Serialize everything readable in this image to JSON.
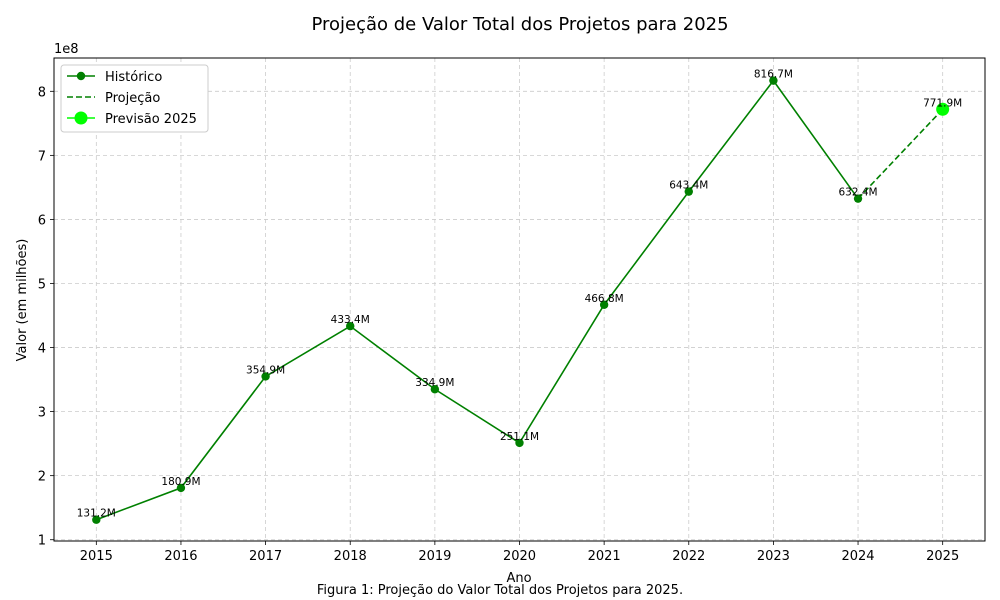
{
  "chart_data": {
    "type": "line",
    "title": "Projeção de Valor Total dos Projetos para 2025",
    "xlabel": "Ano",
    "ylabel": "Valor (em milhões)",
    "y_offset_label": "1e8",
    "caption": "Figura 1: Projeção do Valor Total dos Projetos para 2025.",
    "xlim": [
      2014.5,
      2025.5
    ],
    "ylim": [
      0.98,
      8.52
    ],
    "x_ticks": [
      2015,
      2016,
      2017,
      2018,
      2019,
      2020,
      2021,
      2022,
      2023,
      2024,
      2025
    ],
    "y_ticks": [
      1,
      2,
      3,
      4,
      5,
      6,
      7,
      8
    ],
    "grid": true,
    "legend_position": "top-left",
    "series": [
      {
        "name": "Histórico",
        "style": "solid-with-markers",
        "color": "#008000",
        "x": [
          2015,
          2016,
          2017,
          2018,
          2019,
          2020,
          2021,
          2022,
          2023,
          2024
        ],
        "y": [
          1.312,
          1.809,
          3.549,
          4.334,
          3.349,
          2.511,
          4.668,
          6.434,
          8.167,
          6.324
        ],
        "labels": [
          "131.2M",
          "180.9M",
          "354.9M",
          "433.4M",
          "334.9M",
          "251.1M",
          "466.8M",
          "643.4M",
          "816.7M",
          "632.4M"
        ]
      },
      {
        "name": "Projeção",
        "style": "dashed",
        "color": "#008000",
        "x": [
          2024,
          2025
        ],
        "y": [
          6.324,
          7.719
        ]
      },
      {
        "name": "Previsão 2025",
        "style": "large-marker",
        "color": "#00ff00",
        "x": [
          2025
        ],
        "y": [
          7.719
        ],
        "labels": [
          "771.9M"
        ]
      }
    ]
  }
}
